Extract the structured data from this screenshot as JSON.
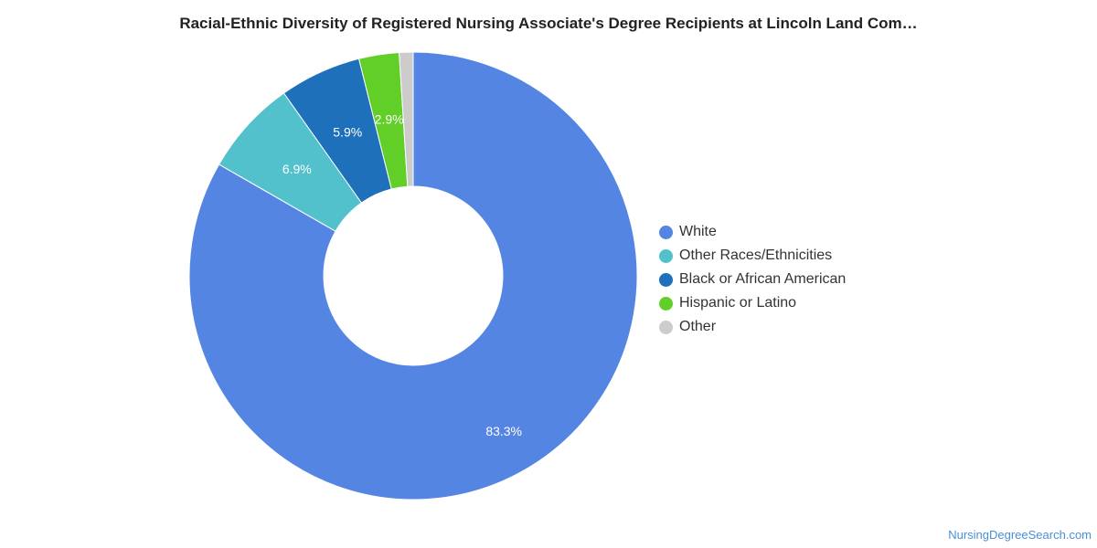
{
  "chart_data": {
    "type": "pie",
    "subtype": "donut",
    "title": "Racial-Ethnic Diversity of Registered Nursing Associate's Degree Recipients at Lincoln Land Com…",
    "legend_position": "right",
    "categories": [
      "White",
      "Other Races/Ethnicities",
      "Black or African American",
      "Hispanic or Latino",
      "Other"
    ],
    "values": [
      83.3,
      6.9,
      5.9,
      2.9,
      1.0
    ],
    "value_labels": [
      "83.3%",
      "6.9%",
      "5.9%",
      "2.9%",
      ""
    ],
    "colors": [
      "#5485e2",
      "#52c1cc",
      "#1f70ba",
      "#62cf28",
      "#cccccc"
    ]
  },
  "credit": "NursingDegreeSearch.com"
}
